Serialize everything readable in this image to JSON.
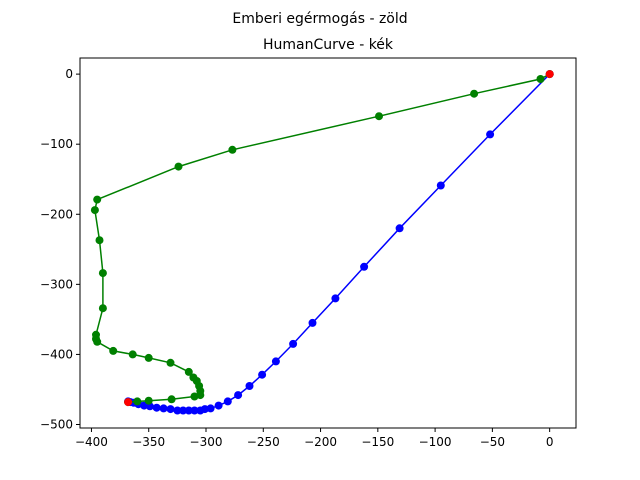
{
  "chart_data": {
    "type": "line",
    "suptitle": "Emberi egérmogás - zöld",
    "title": "HumanCurve - kék",
    "xlim": [
      -410,
      23
    ],
    "ylim": [
      -505,
      23
    ],
    "xticks": [
      -400,
      -350,
      -300,
      -250,
      -200,
      -150,
      -100,
      -50,
      0
    ],
    "yticks": [
      0,
      -100,
      -200,
      -300,
      -400,
      -500
    ],
    "xtick_labels": [
      "−400",
      "−350",
      "−300",
      "−250",
      "−200",
      "−150",
      "−100",
      "−50",
      "0"
    ],
    "ytick_labels": [
      "0",
      "−100",
      "−200",
      "−300",
      "−400",
      "−500"
    ],
    "grid": false,
    "series": [
      {
        "color": "#0000ff",
        "marker": "circle",
        "x": [
          0,
          -52,
          -95,
          -131,
          -162,
          -187,
          -207,
          -224,
          -239,
          -251,
          -262,
          -272,
          -281,
          -289,
          -296,
          -301,
          -305,
          -310,
          -315,
          -320,
          -325,
          -331,
          -337,
          -343,
          -349,
          -354,
          -359,
          -363,
          -366,
          -368
        ],
        "y": [
          0,
          -86,
          -159,
          -220,
          -275,
          -320,
          -355,
          -385,
          -410,
          -429,
          -445,
          -458,
          -467,
          -473,
          -477,
          -478,
          -480,
          -480,
          -480,
          -480,
          -480,
          -478,
          -477,
          -476,
          -474,
          -473,
          -471,
          -469,
          -468,
          -467
        ]
      },
      {
        "color": "#008000",
        "marker": "circle",
        "x": [
          0,
          -8,
          -66,
          -149,
          -277,
          -324,
          -395,
          -397,
          -393,
          -390,
          -390,
          -396,
          -396,
          -395,
          -381,
          -364,
          -350,
          -331,
          -315,
          -311,
          -308,
          -306,
          -305,
          -305,
          -310,
          -330,
          -350,
          -360,
          -368
        ],
        "y": [
          0,
          -7,
          -28,
          -60,
          -108,
          -132,
          -179,
          -194,
          -237,
          -284,
          -334,
          -372,
          -378,
          -382,
          -395,
          -400,
          -405,
          -412,
          -425,
          -433,
          -438,
          -445,
          -452,
          -458,
          -460,
          -464,
          -466,
          -467,
          -468
        ]
      }
    ],
    "endpoints": {
      "color": "#ff0000",
      "points": [
        [
          0,
          0
        ],
        [
          -368,
          -468
        ]
      ]
    }
  }
}
